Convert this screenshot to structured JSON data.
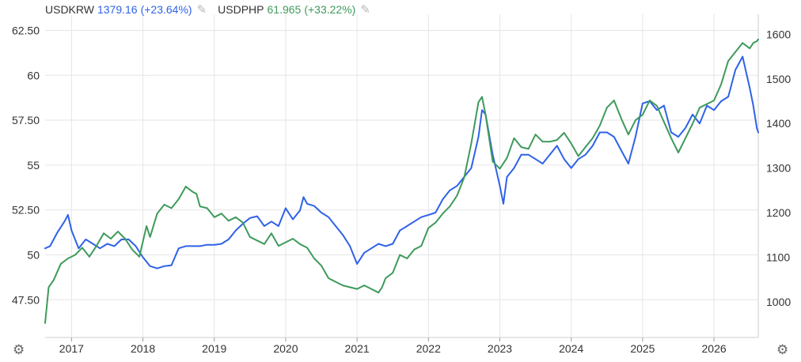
{
  "legend": [
    {
      "symbol": "USDKRW",
      "value": "1379.16",
      "change": "(+23.64%)",
      "color": "#2f62e8"
    },
    {
      "symbol": "USDPHP",
      "value": "61.965",
      "change": "(+33.22%)",
      "color": "#3f9a5c"
    }
  ],
  "icons": {
    "edit": "pencil-icon",
    "settings": "gear-icon"
  },
  "chart_data": {
    "type": "line",
    "x_range": [
      2016.63,
      2026.62
    ],
    "xticks": [
      "2017",
      "2018",
      "2019",
      "2020",
      "2021",
      "2022",
      "2023",
      "2024",
      "2025",
      "2026"
    ],
    "left_axis": {
      "range": [
        45.4,
        63.4
      ],
      "ticks": [
        47.5,
        50,
        52.5,
        55,
        57.5,
        60,
        62.5
      ],
      "tick_labels": [
        "47.50",
        "50",
        "52.50",
        "55",
        "57.50",
        "60",
        "62.50"
      ]
    },
    "right_axis": {
      "range": [
        920,
        1645
      ],
      "ticks": [
        1000,
        1100,
        1200,
        1300,
        1400,
        1500,
        1600
      ],
      "tick_labels": [
        "1000",
        "1100",
        "1200",
        "1300",
        "1400",
        "1500",
        "1600"
      ]
    },
    "grid": true,
    "legend_position": "top-left",
    "series": [
      {
        "name": "USDKRW",
        "axis": "right",
        "color": "#2f62e8",
        "x": [
          2016.63,
          2016.7,
          2016.8,
          2016.9,
          2016.95,
          2017.0,
          2017.1,
          2017.2,
          2017.3,
          2017.4,
          2017.5,
          2017.6,
          2017.7,
          2017.8,
          2017.9,
          2018.0,
          2018.1,
          2018.2,
          2018.3,
          2018.4,
          2018.5,
          2018.6,
          2018.7,
          2018.8,
          2018.9,
          2019.0,
          2019.1,
          2019.2,
          2019.3,
          2019.4,
          2019.5,
          2019.6,
          2019.7,
          2019.8,
          2019.9,
          2020.0,
          2020.1,
          2020.2,
          2020.25,
          2020.3,
          2020.4,
          2020.5,
          2020.6,
          2020.7,
          2020.8,
          2020.9,
          2021.0,
          2021.1,
          2021.2,
          2021.3,
          2021.4,
          2021.5,
          2021.6,
          2021.7,
          2021.8,
          2021.9,
          2022.0,
          2022.1,
          2022.2,
          2022.3,
          2022.4,
          2022.5,
          2022.6,
          2022.7,
          2022.75,
          2022.8,
          2022.9,
          2023.0,
          2023.05,
          2023.1,
          2023.2,
          2023.3,
          2023.4,
          2023.5,
          2023.6,
          2023.7,
          2023.8,
          2023.9,
          2024.0,
          2024.1,
          2024.2,
          2024.3,
          2024.4,
          2024.5,
          2024.6,
          2024.7,
          2024.8,
          2024.9,
          2025.0,
          2025.1,
          2025.2,
          2025.3,
          2025.4,
          2025.5,
          2025.6,
          2025.7,
          2025.8,
          2025.9,
          2026.0,
          2026.1,
          2026.2,
          2026.3,
          2026.4,
          2026.5,
          2026.55,
          2026.6,
          2026.62
        ],
        "y": [
          1120,
          1125,
          1155,
          1180,
          1195,
          1160,
          1120,
          1140,
          1130,
          1120,
          1130,
          1125,
          1140,
          1140,
          1125,
          1100,
          1080,
          1075,
          1080,
          1082,
          1120,
          1125,
          1125,
          1125,
          1128,
          1128,
          1130,
          1140,
          1160,
          1175,
          1188,
          1192,
          1170,
          1180,
          1170,
          1210,
          1185,
          1205,
          1235,
          1220,
          1215,
          1200,
          1190,
          1170,
          1150,
          1125,
          1085,
          1110,
          1120,
          1130,
          1125,
          1130,
          1160,
          1170,
          1180,
          1190,
          1195,
          1200,
          1230,
          1250,
          1260,
          1280,
          1300,
          1370,
          1430,
          1420,
          1330,
          1260,
          1220,
          1280,
          1300,
          1330,
          1330,
          1320,
          1310,
          1330,
          1350,
          1320,
          1300,
          1320,
          1330,
          1350,
          1380,
          1380,
          1370,
          1340,
          1310,
          1370,
          1445,
          1450,
          1430,
          1440,
          1380,
          1370,
          1390,
          1420,
          1400,
          1440,
          1430,
          1450,
          1460,
          1520,
          1550,
          1480,
          1440,
          1390,
          1380
        ]
      },
      {
        "name": "USDPHP",
        "axis": "left",
        "color": "#3f9a5c",
        "x": [
          2016.63,
          2016.68,
          2016.75,
          2016.85,
          2016.95,
          2017.05,
          2017.15,
          2017.25,
          2017.35,
          2017.45,
          2017.55,
          2017.65,
          2017.75,
          2017.85,
          2017.95,
          2018.05,
          2018.1,
          2018.2,
          2018.3,
          2018.4,
          2018.5,
          2018.6,
          2018.7,
          2018.75,
          2018.8,
          2018.9,
          2019.0,
          2019.1,
          2019.2,
          2019.3,
          2019.4,
          2019.5,
          2019.6,
          2019.7,
          2019.8,
          2019.9,
          2020.0,
          2020.1,
          2020.2,
          2020.3,
          2020.4,
          2020.5,
          2020.6,
          2020.7,
          2020.8,
          2020.9,
          2021.0,
          2021.1,
          2021.2,
          2021.3,
          2021.35,
          2021.4,
          2021.5,
          2021.6,
          2021.7,
          2021.8,
          2021.9,
          2022.0,
          2022.1,
          2022.2,
          2022.3,
          2022.4,
          2022.5,
          2022.6,
          2022.7,
          2022.75,
          2022.8,
          2022.9,
          2023.0,
          2023.1,
          2023.2,
          2023.3,
          2023.4,
          2023.5,
          2023.6,
          2023.7,
          2023.8,
          2023.9,
          2024.0,
          2024.1,
          2024.2,
          2024.3,
          2024.4,
          2024.5,
          2024.6,
          2024.7,
          2024.8,
          2024.9,
          2025.0,
          2025.1,
          2025.2,
          2025.3,
          2025.4,
          2025.5,
          2025.6,
          2025.7,
          2025.8,
          2025.9,
          2026.0,
          2026.1,
          2026.2,
          2026.3,
          2026.4,
          2026.5,
          2026.55,
          2026.6,
          2026.62
        ],
        "y": [
          46.2,
          48.2,
          48.6,
          49.5,
          49.8,
          50.0,
          50.4,
          49.9,
          50.5,
          51.2,
          50.9,
          51.3,
          50.9,
          50.3,
          49.9,
          51.6,
          51.0,
          52.3,
          52.8,
          52.6,
          53.1,
          53.8,
          53.5,
          53.4,
          52.7,
          52.6,
          52.1,
          52.3,
          51.9,
          52.1,
          51.8,
          51.0,
          50.8,
          50.6,
          51.2,
          50.5,
          50.7,
          50.9,
          50.6,
          50.4,
          49.8,
          49.4,
          48.7,
          48.5,
          48.3,
          48.2,
          48.1,
          48.3,
          48.1,
          47.9,
          48.2,
          48.7,
          49.0,
          50.0,
          49.8,
          50.3,
          50.5,
          51.5,
          51.8,
          52.3,
          52.7,
          53.3,
          54.3,
          56.2,
          58.5,
          58.8,
          57.8,
          55.2,
          54.8,
          55.4,
          56.5,
          56.0,
          55.9,
          56.7,
          56.3,
          56.3,
          56.4,
          56.8,
          56.2,
          55.5,
          56.0,
          56.5,
          57.2,
          58.2,
          58.6,
          57.6,
          56.7,
          57.5,
          57.8,
          58.6,
          58.3,
          57.4,
          56.5,
          55.7,
          56.5,
          57.3,
          58.2,
          58.4,
          58.6,
          59.5,
          60.8,
          61.3,
          61.8,
          61.5,
          61.8,
          61.9,
          62.0
        ]
      }
    ]
  }
}
